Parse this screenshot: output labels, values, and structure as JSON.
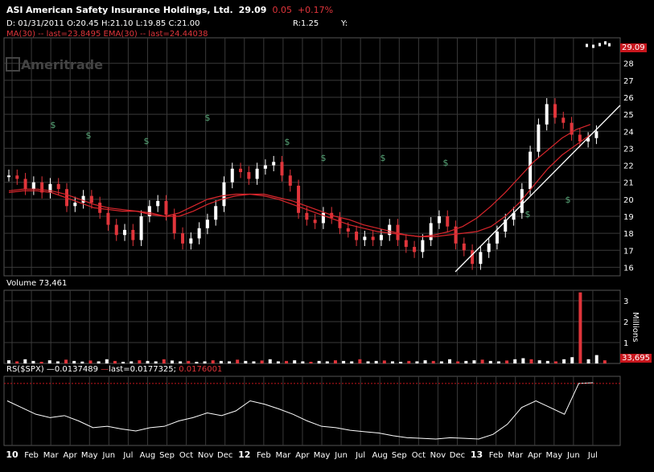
{
  "header": {
    "ticker": "ASI",
    "name": "American Safety Insurance Holdings, Ltd.",
    "last_price": "29.09",
    "change": "0.05",
    "change_pct": "+0.17%",
    "date": "D: 01/31/2011",
    "open": "O:20.45",
    "high": "H:21.10",
    "low": "L:19.85",
    "close": "C:21.00",
    "range": "R:1.25",
    "y_label": "Y:",
    "ma_line": "MA(30) -- last=23.8495 EMA(30) -- last=24.44038"
  },
  "watermark": "Ameritrade",
  "volume_legend": "Volume 73,461",
  "volume_tag": "33,695",
  "volume_unit": "Millions",
  "rs_legend": {
    "label": "RS($SPX)",
    "value1": "0.0137489",
    "last": "last=0.0177325",
    "value2": "0.0176001"
  },
  "price_tag": "29.09",
  "colors": {
    "up": "#ffffff",
    "down": "#e0353b",
    "ma": "#d9262c",
    "grid": "#3a3a3a",
    "dividend": "#5aa87a",
    "accent_red": "#c8161d"
  },
  "chart_data": [
    {
      "type": "line",
      "title": "ASI American Safety Insurance Holdings, Ltd.",
      "x_ticks": [
        "10",
        "Feb",
        "Mar",
        "Apr",
        "May",
        "Jun",
        "Jul",
        "Aug",
        "Sep",
        "Oct",
        "Nov",
        "Dec",
        "12",
        "Feb",
        "Mar",
        "Apr",
        "May",
        "Jun",
        "Jul",
        "Aug",
        "Sep",
        "Oct",
        "Nov",
        "Dec",
        "13",
        "Feb",
        "Mar",
        "Apr",
        "May",
        "Jun",
        "Jul"
      ],
      "ylim": [
        15.5,
        29.5
      ],
      "y_ticks": [
        16,
        17,
        18,
        19,
        20,
        21,
        22,
        23,
        24,
        25,
        26,
        27,
        28
      ],
      "series": [
        {
          "name": "Price",
          "values": [
            21.4,
            21.2,
            20.6,
            21.0,
            20.4,
            20.9,
            20.6,
            19.6,
            19.8,
            20.2,
            19.8,
            19.2,
            18.5,
            17.9,
            18.2,
            17.6,
            19.0,
            19.6,
            19.9,
            19.1,
            18.0,
            17.4,
            17.7,
            18.3,
            18.8,
            19.6,
            21.0,
            21.8,
            21.6,
            21.2,
            21.8,
            22.0,
            22.2,
            21.4,
            20.8,
            19.2,
            18.8,
            18.6,
            19.2,
            18.9,
            18.3,
            18.1,
            17.6,
            17.8,
            17.6,
            17.9,
            18.5,
            17.6,
            17.2,
            16.9,
            17.6,
            18.6,
            19.0,
            18.4,
            17.4,
            17.0,
            16.2,
            16.9,
            17.4,
            18.1,
            18.8,
            19.2,
            20.6,
            22.8,
            24.4,
            25.6,
            24.8,
            24.5,
            23.8,
            23.4,
            23.6,
            24.0,
            29.09
          ]
        },
        {
          "name": "MA(30)",
          "values": [
            20.5,
            20.6,
            20.6,
            20.5,
            20.3,
            20.0,
            19.7,
            19.5,
            19.4,
            19.3,
            19.2,
            19.0,
            19.0,
            19.3,
            19.7,
            20.0,
            20.2,
            20.3,
            20.3,
            20.1,
            19.9,
            19.6,
            19.3,
            19.0,
            18.8,
            18.5,
            18.3,
            18.1,
            17.9,
            17.8,
            17.8,
            17.9,
            18.0,
            18.1,
            18.4,
            19.0,
            19.8,
            20.8,
            21.8,
            22.6,
            23.2,
            23.8
          ]
        },
        {
          "name": "EMA(30)",
          "values": [
            20.4,
            20.5,
            20.5,
            20.4,
            20.1,
            19.8,
            19.5,
            19.4,
            19.3,
            19.3,
            19.1,
            19.0,
            19.2,
            19.6,
            20.0,
            20.2,
            20.3,
            20.3,
            20.2,
            20.0,
            19.7,
            19.4,
            19.1,
            18.8,
            18.5,
            18.3,
            18.1,
            18.0,
            17.9,
            17.8,
            17.9,
            18.1,
            18.4,
            18.9,
            19.6,
            20.4,
            21.3,
            22.2,
            22.9,
            23.6,
            24.1,
            24.4
          ]
        }
      ]
    },
    {
      "type": "bar",
      "title": "Volume",
      "ylim": [
        0,
        3.5
      ],
      "y_ticks": [
        1,
        2,
        3
      ],
      "ylabel": "Millions",
      "values": [
        0.15,
        0.1,
        0.2,
        0.12,
        0.08,
        0.15,
        0.1,
        0.18,
        0.12,
        0.09,
        0.14,
        0.1,
        0.2,
        0.12,
        0.08,
        0.1,
        0.15,
        0.12,
        0.1,
        0.2,
        0.14,
        0.1,
        0.12,
        0.08,
        0.1,
        0.15,
        0.12,
        0.1,
        0.18,
        0.12,
        0.1,
        0.14,
        0.2,
        0.1,
        0.12,
        0.15,
        0.1,
        0.08,
        0.12,
        0.1,
        0.15,
        0.12,
        0.1,
        0.2,
        0.1,
        0.12,
        0.14,
        0.1,
        0.08,
        0.12,
        0.1,
        0.15,
        0.12,
        0.1,
        0.2,
        0.1,
        0.12,
        0.15,
        0.18,
        0.12,
        0.1,
        0.14,
        0.2,
        0.25,
        0.2,
        0.15,
        0.12,
        0.1,
        0.2,
        0.3,
        3.4,
        0.2,
        0.4,
        0.15
      ]
    },
    {
      "type": "line",
      "title": "RS($SPX)",
      "values": [
        0.015,
        0.014,
        0.013,
        0.0125,
        0.0128,
        0.012,
        0.011,
        0.0112,
        0.0108,
        0.0105,
        0.011,
        0.0112,
        0.012,
        0.0125,
        0.0132,
        0.0128,
        0.0135,
        0.015,
        0.0145,
        0.0138,
        0.013,
        0.012,
        0.0112,
        0.011,
        0.0106,
        0.0104,
        0.0102,
        0.0098,
        0.0095,
        0.0094,
        0.0093,
        0.0095,
        0.0094,
        0.0093,
        0.01,
        0.0115,
        0.014,
        0.015,
        0.014,
        0.013,
        0.0176,
        0.0177
      ]
    }
  ]
}
